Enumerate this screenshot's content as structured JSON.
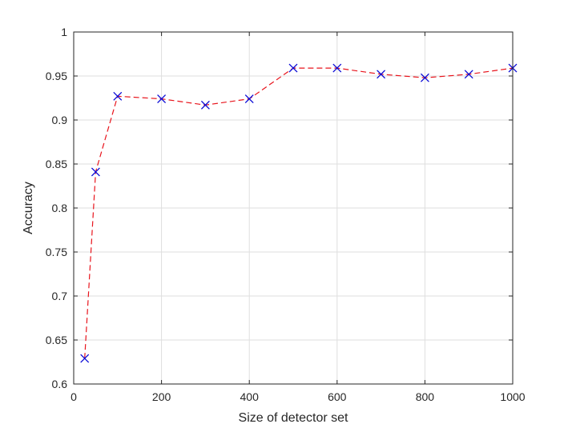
{
  "chart_data": {
    "type": "line",
    "xlabel": "Size of detector set",
    "ylabel": "Accuracy",
    "xlim": [
      0,
      1000
    ],
    "ylim": [
      0.6,
      1.0
    ],
    "xticks": [
      0,
      200,
      400,
      600,
      800,
      1000
    ],
    "yticks": [
      0.6,
      0.65,
      0.7,
      0.75,
      0.8,
      0.85,
      0.9,
      0.95,
      1.0
    ],
    "xtick_labels": [
      "0",
      "200",
      "400",
      "600",
      "800",
      "1000"
    ],
    "ytick_labels": [
      "0.6",
      "0.65",
      "0.7",
      "0.75",
      "0.8",
      "0.85",
      "0.9",
      "0.95",
      "1"
    ],
    "grid": true,
    "series": [
      {
        "x": [
          25,
          50,
          100,
          200,
          300,
          400,
          500,
          600,
          700,
          800,
          900,
          1000
        ],
        "values": [
          0.629,
          0.841,
          0.927,
          0.924,
          0.917,
          0.924,
          0.959,
          0.959,
          0.952,
          0.948,
          0.952,
          0.959
        ],
        "line_color": "#e8141c",
        "line_style": "dashed",
        "marker": "x",
        "marker_color": "#0b0bd6"
      }
    ]
  }
}
